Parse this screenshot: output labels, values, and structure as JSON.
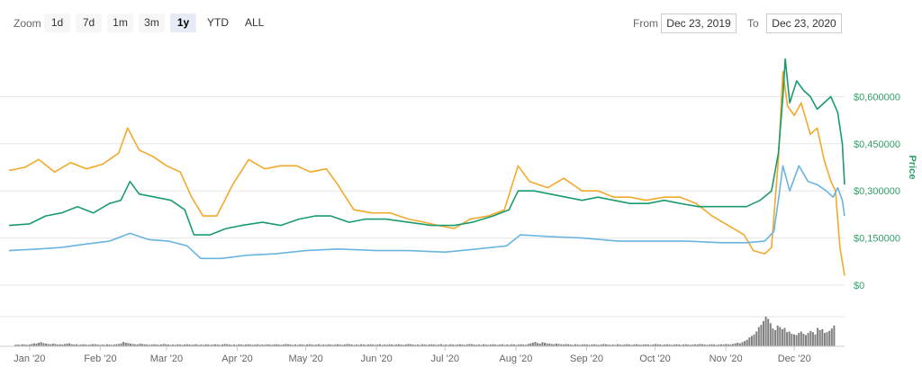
{
  "toolbar": {
    "zoom_label": "Zoom",
    "zoom_buttons": [
      "1d",
      "7d",
      "1m",
      "3m",
      "1y",
      "YTD",
      "ALL"
    ],
    "active_zoom": "1y",
    "from_label": "From",
    "from_value": "Dec 23, 2019",
    "to_label": "To",
    "to_value": "Dec 23, 2020"
  },
  "colors": {
    "price": "#1a9b6f",
    "orange_series": "#f3a92b",
    "blue_series": "#6ab4e0",
    "volume": "#808080",
    "grid": "#e6e6e6",
    "axis_text": "#2f9f66"
  },
  "chart_data": {
    "type": "line",
    "ylabel": "Price",
    "y_ticks": [
      "$0",
      "$0,150000",
      "$0,300000",
      "$0,450000",
      "$0,600000"
    ],
    "ylim": [
      0,
      0.75
    ],
    "x_ticks": [
      "Jan '20",
      "Feb '20",
      "Mar '20",
      "Apr '20",
      "May '20",
      "Jun '20",
      "Jul '20",
      "Aug '20",
      "Sep '20",
      "Oct '20",
      "Nov '20",
      "Dec '20"
    ],
    "x_range": [
      "2019-12-23",
      "2020-12-23"
    ],
    "legend": "none",
    "series": [
      {
        "color": "orange",
        "points": [
          [
            "2019-12-23",
            0.365
          ],
          [
            "2019-12-30",
            0.375
          ],
          [
            "2020-01-05",
            0.4
          ],
          [
            "2020-01-12",
            0.36
          ],
          [
            "2020-01-19",
            0.39
          ],
          [
            "2020-01-26",
            0.37
          ],
          [
            "2020-02-02",
            0.385
          ],
          [
            "2020-02-09",
            0.42
          ],
          [
            "2020-02-13",
            0.5
          ],
          [
            "2020-02-18",
            0.43
          ],
          [
            "2020-02-24",
            0.41
          ],
          [
            "2020-03-01",
            0.38
          ],
          [
            "2020-03-07",
            0.36
          ],
          [
            "2020-03-12",
            0.28
          ],
          [
            "2020-03-17",
            0.22
          ],
          [
            "2020-03-23",
            0.22
          ],
          [
            "2020-03-30",
            0.32
          ],
          [
            "2020-04-06",
            0.4
          ],
          [
            "2020-04-13",
            0.37
          ],
          [
            "2020-04-20",
            0.38
          ],
          [
            "2020-04-27",
            0.38
          ],
          [
            "2020-05-03",
            0.36
          ],
          [
            "2020-05-10",
            0.37
          ],
          [
            "2020-05-15",
            0.32
          ],
          [
            "2020-05-22",
            0.24
          ],
          [
            "2020-05-30",
            0.23
          ],
          [
            "2020-06-07",
            0.23
          ],
          [
            "2020-06-15",
            0.21
          ],
          [
            "2020-06-22",
            0.2
          ],
          [
            "2020-06-28",
            0.19
          ],
          [
            "2020-07-05",
            0.18
          ],
          [
            "2020-07-12",
            0.21
          ],
          [
            "2020-07-20",
            0.22
          ],
          [
            "2020-07-27",
            0.24
          ],
          [
            "2020-08-02",
            0.38
          ],
          [
            "2020-08-07",
            0.33
          ],
          [
            "2020-08-15",
            0.31
          ],
          [
            "2020-08-22",
            0.34
          ],
          [
            "2020-08-30",
            0.3
          ],
          [
            "2020-09-06",
            0.3
          ],
          [
            "2020-09-13",
            0.28
          ],
          [
            "2020-09-20",
            0.28
          ],
          [
            "2020-09-27",
            0.27
          ],
          [
            "2020-10-05",
            0.28
          ],
          [
            "2020-10-12",
            0.28
          ],
          [
            "2020-10-19",
            0.26
          ],
          [
            "2020-10-26",
            0.22
          ],
          [
            "2020-11-02",
            0.19
          ],
          [
            "2020-11-09",
            0.16
          ],
          [
            "2020-11-13",
            0.11
          ],
          [
            "2020-11-18",
            0.1
          ],
          [
            "2020-11-21",
            0.12
          ],
          [
            "2020-11-24",
            0.4
          ],
          [
            "2020-11-26",
            0.68
          ],
          [
            "2020-11-28",
            0.57
          ],
          [
            "2020-12-01",
            0.54
          ],
          [
            "2020-12-04",
            0.58
          ],
          [
            "2020-12-08",
            0.48
          ],
          [
            "2020-12-11",
            0.5
          ],
          [
            "2020-12-14",
            0.4
          ],
          [
            "2020-12-17",
            0.33
          ],
          [
            "2020-12-19",
            0.3
          ],
          [
            "2020-12-21",
            0.12
          ],
          [
            "2020-12-23",
            0.03
          ]
        ]
      },
      {
        "color": "green",
        "points": [
          [
            "2019-12-23",
            0.19
          ],
          [
            "2020-01-01",
            0.195
          ],
          [
            "2020-01-08",
            0.22
          ],
          [
            "2020-01-15",
            0.23
          ],
          [
            "2020-01-22",
            0.25
          ],
          [
            "2020-01-29",
            0.23
          ],
          [
            "2020-02-05",
            0.26
          ],
          [
            "2020-02-10",
            0.27
          ],
          [
            "2020-02-14",
            0.33
          ],
          [
            "2020-02-18",
            0.29
          ],
          [
            "2020-02-25",
            0.28
          ],
          [
            "2020-03-03",
            0.27
          ],
          [
            "2020-03-09",
            0.24
          ],
          [
            "2020-03-13",
            0.16
          ],
          [
            "2020-03-20",
            0.16
          ],
          [
            "2020-03-27",
            0.18
          ],
          [
            "2020-04-03",
            0.19
          ],
          [
            "2020-04-12",
            0.2
          ],
          [
            "2020-04-20",
            0.19
          ],
          [
            "2020-04-28",
            0.21
          ],
          [
            "2020-05-05",
            0.22
          ],
          [
            "2020-05-12",
            0.22
          ],
          [
            "2020-05-20",
            0.2
          ],
          [
            "2020-05-27",
            0.21
          ],
          [
            "2020-06-05",
            0.21
          ],
          [
            "2020-06-15",
            0.2
          ],
          [
            "2020-06-25",
            0.19
          ],
          [
            "2020-07-05",
            0.19
          ],
          [
            "2020-07-13",
            0.2
          ],
          [
            "2020-07-22",
            0.22
          ],
          [
            "2020-07-29",
            0.24
          ],
          [
            "2020-08-02",
            0.3
          ],
          [
            "2020-08-09",
            0.3
          ],
          [
            "2020-08-16",
            0.29
          ],
          [
            "2020-08-23",
            0.28
          ],
          [
            "2020-08-30",
            0.27
          ],
          [
            "2020-09-06",
            0.28
          ],
          [
            "2020-09-13",
            0.27
          ],
          [
            "2020-09-20",
            0.26
          ],
          [
            "2020-09-28",
            0.26
          ],
          [
            "2020-10-05",
            0.27
          ],
          [
            "2020-10-12",
            0.26
          ],
          [
            "2020-10-20",
            0.25
          ],
          [
            "2020-10-27",
            0.25
          ],
          [
            "2020-11-03",
            0.25
          ],
          [
            "2020-11-10",
            0.25
          ],
          [
            "2020-11-16",
            0.27
          ],
          [
            "2020-11-21",
            0.3
          ],
          [
            "2020-11-24",
            0.42
          ],
          [
            "2020-11-26",
            0.6
          ],
          [
            "2020-11-27",
            0.72
          ],
          [
            "2020-11-29",
            0.58
          ],
          [
            "2020-12-02",
            0.65
          ],
          [
            "2020-12-05",
            0.62
          ],
          [
            "2020-12-08",
            0.6
          ],
          [
            "2020-12-11",
            0.56
          ],
          [
            "2020-12-14",
            0.58
          ],
          [
            "2020-12-17",
            0.6
          ],
          [
            "2020-12-20",
            0.55
          ],
          [
            "2020-12-22",
            0.45
          ],
          [
            "2020-12-23",
            0.32
          ]
        ]
      },
      {
        "color": "blue",
        "points": [
          [
            "2019-12-23",
            0.11
          ],
          [
            "2020-01-05",
            0.115
          ],
          [
            "2020-01-15",
            0.12
          ],
          [
            "2020-01-25",
            0.13
          ],
          [
            "2020-02-05",
            0.14
          ],
          [
            "2020-02-14",
            0.165
          ],
          [
            "2020-02-22",
            0.145
          ],
          [
            "2020-03-02",
            0.14
          ],
          [
            "2020-03-10",
            0.125
          ],
          [
            "2020-03-16",
            0.085
          ],
          [
            "2020-03-25",
            0.085
          ],
          [
            "2020-04-05",
            0.095
          ],
          [
            "2020-04-18",
            0.1
          ],
          [
            "2020-05-01",
            0.11
          ],
          [
            "2020-05-15",
            0.115
          ],
          [
            "2020-06-01",
            0.11
          ],
          [
            "2020-06-15",
            0.11
          ],
          [
            "2020-07-01",
            0.105
          ],
          [
            "2020-07-15",
            0.115
          ],
          [
            "2020-07-28",
            0.125
          ],
          [
            "2020-08-03",
            0.16
          ],
          [
            "2020-08-15",
            0.155
          ],
          [
            "2020-08-30",
            0.15
          ],
          [
            "2020-09-15",
            0.14
          ],
          [
            "2020-09-30",
            0.14
          ],
          [
            "2020-10-15",
            0.14
          ],
          [
            "2020-10-30",
            0.135
          ],
          [
            "2020-11-10",
            0.135
          ],
          [
            "2020-11-18",
            0.14
          ],
          [
            "2020-11-22",
            0.17
          ],
          [
            "2020-11-24",
            0.27
          ],
          [
            "2020-11-26",
            0.38
          ],
          [
            "2020-11-29",
            0.3
          ],
          [
            "2020-12-03",
            0.38
          ],
          [
            "2020-12-07",
            0.33
          ],
          [
            "2020-12-11",
            0.32
          ],
          [
            "2020-12-15",
            0.3
          ],
          [
            "2020-12-18",
            0.28
          ],
          [
            "2020-12-20",
            0.31
          ],
          [
            "2020-12-22",
            0.27
          ],
          [
            "2020-12-23",
            0.22
          ]
        ]
      }
    ],
    "volume": {
      "daily_bars": [
        0.05,
        0.06,
        0.05,
        0.07,
        0.06,
        0.05,
        0.06,
        0.08,
        0.1,
        0.09,
        0.12,
        0.14,
        0.11,
        0.09,
        0.08,
        0.07,
        0.09,
        0.08,
        0.06,
        0.07,
        0.06,
        0.08,
        0.09,
        0.1,
        0.07,
        0.06,
        0.07,
        0.05,
        0.06,
        0.07,
        0.06,
        0.05,
        0.06,
        0.08,
        0.07,
        0.06,
        0.05,
        0.06,
        0.05,
        0.07,
        0.06,
        0.05,
        0.06,
        0.07,
        0.08,
        0.1,
        0.15,
        0.12,
        0.11,
        0.09,
        0.08,
        0.07,
        0.06,
        0.09,
        0.08,
        0.07,
        0.06,
        0.05,
        0.06,
        0.07,
        0.06,
        0.05,
        0.06,
        0.08,
        0.07,
        0.06,
        0.05,
        0.06,
        0.05,
        0.07,
        0.06,
        0.05,
        0.06,
        0.07,
        0.06,
        0.05,
        0.06,
        0.07,
        0.05,
        0.06,
        0.05,
        0.07,
        0.06,
        0.05,
        0.06,
        0.07,
        0.06,
        0.05,
        0.06,
        0.08,
        0.07,
        0.06,
        0.05,
        0.06,
        0.05,
        0.07,
        0.06,
        0.05,
        0.06,
        0.07,
        0.06,
        0.05,
        0.06,
        0.07,
        0.05,
        0.06,
        0.05,
        0.07,
        0.06,
        0.05,
        0.06,
        0.07,
        0.06,
        0.05,
        0.06,
        0.08,
        0.07,
        0.06,
        0.05,
        0.06,
        0.05,
        0.07,
        0.06,
        0.05,
        0.06,
        0.07,
        0.06,
        0.05,
        0.06,
        0.07,
        0.05,
        0.06,
        0.05,
        0.07,
        0.06,
        0.05,
        0.06,
        0.07,
        0.06,
        0.05,
        0.06,
        0.08,
        0.07,
        0.06,
        0.05,
        0.06,
        0.05,
        0.07,
        0.06,
        0.05,
        0.06,
        0.07,
        0.06,
        0.05,
        0.06,
        0.07,
        0.05,
        0.06,
        0.05,
        0.07,
        0.06,
        0.05,
        0.06,
        0.07,
        0.06,
        0.05,
        0.06,
        0.08,
        0.07,
        0.06,
        0.05,
        0.06,
        0.05,
        0.07,
        0.06,
        0.05,
        0.06,
        0.07,
        0.06,
        0.05,
        0.06,
        0.07,
        0.05,
        0.06,
        0.05,
        0.07,
        0.06,
        0.05,
        0.06,
        0.07,
        0.06,
        0.05,
        0.06,
        0.08,
        0.07,
        0.06,
        0.05,
        0.06,
        0.05,
        0.07,
        0.06,
        0.05,
        0.06,
        0.07,
        0.06,
        0.05,
        0.06,
        0.07,
        0.05,
        0.06,
        0.05,
        0.07,
        0.06,
        0.05,
        0.06,
        0.07,
        0.06,
        0.05,
        0.08,
        0.1,
        0.12,
        0.15,
        0.11,
        0.09,
        0.14,
        0.12,
        0.1,
        0.09,
        0.08,
        0.07,
        0.09,
        0.08,
        0.07,
        0.06,
        0.08,
        0.07,
        0.06,
        0.05,
        0.07,
        0.06,
        0.05,
        0.06,
        0.07,
        0.06,
        0.05,
        0.06,
        0.07,
        0.06,
        0.05,
        0.06,
        0.08,
        0.07,
        0.06,
        0.05,
        0.06,
        0.05,
        0.07,
        0.06,
        0.05,
        0.06,
        0.07,
        0.06,
        0.05,
        0.06,
        0.07,
        0.06,
        0.05,
        0.06,
        0.07,
        0.06,
        0.05,
        0.06,
        0.08,
        0.07,
        0.06,
        0.05,
        0.06,
        0.07,
        0.06,
        0.05,
        0.06,
        0.07,
        0.06,
        0.05,
        0.06,
        0.07,
        0.06,
        0.05,
        0.06,
        0.07,
        0.06,
        0.08,
        0.07,
        0.06,
        0.05,
        0.06,
        0.07,
        0.06,
        0.05,
        0.06,
        0.07,
        0.06,
        0.08,
        0.07,
        0.06,
        0.08,
        0.1,
        0.12,
        0.1,
        0.14,
        0.18,
        0.22,
        0.3,
        0.35,
        0.4,
        0.5,
        0.65,
        0.72,
        0.85,
        1.0,
        0.92,
        0.78,
        0.6,
        0.55,
        0.7,
        0.65,
        0.58,
        0.62,
        0.48,
        0.5,
        0.42,
        0.4,
        0.38,
        0.45,
        0.5,
        0.42,
        0.38,
        0.45,
        0.52,
        0.48,
        0.4,
        0.62,
        0.55,
        0.58,
        0.45,
        0.48,
        0.52,
        0.6,
        0.7
      ]
    }
  }
}
